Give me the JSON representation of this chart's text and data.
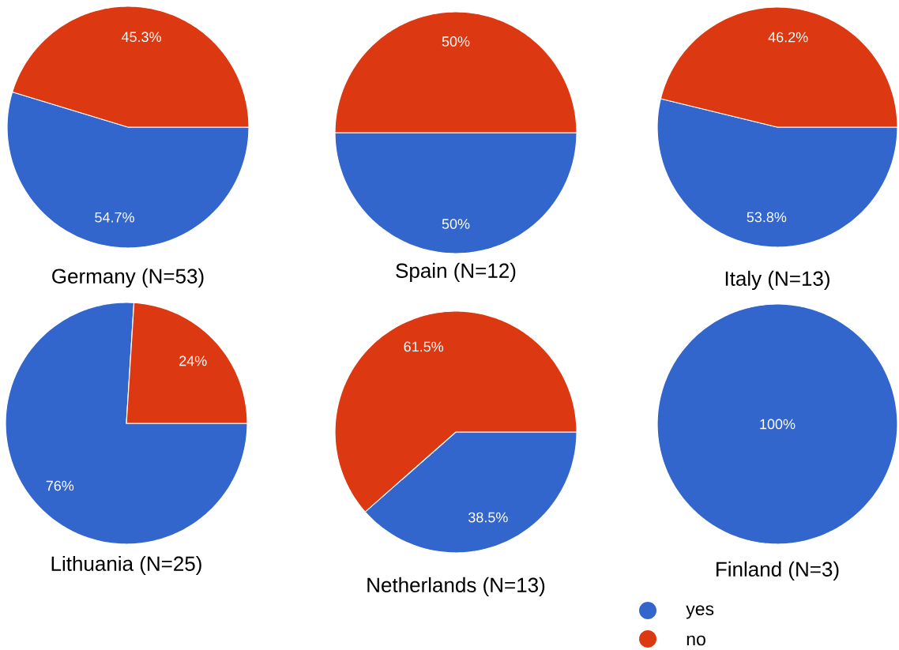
{
  "chart_data": [
    {
      "type": "pie",
      "title": "Germany (N=53)",
      "categories": [
        null,
        null
      ],
      "values": [
        54.7,
        45.3
      ],
      "colors": [
        "#3366cc",
        "#dc3912"
      ],
      "value_labels": [
        "54.7%",
        "45.3%"
      ]
    },
    {
      "type": "pie",
      "title": "Spain (N=12)",
      "categories": [
        null,
        null
      ],
      "values": [
        50,
        50
      ],
      "colors": [
        "#3366cc",
        "#dc3912"
      ],
      "value_labels": [
        "50%",
        "50%"
      ]
    },
    {
      "type": "pie",
      "title": "Italy (N=13)",
      "categories": [
        null,
        null
      ],
      "values": [
        53.8,
        46.2
      ],
      "colors": [
        "#3366cc",
        "#dc3912"
      ],
      "value_labels": [
        "53.8%",
        "46.2%"
      ]
    },
    {
      "type": "pie",
      "title": "Lithuania  (N=25)",
      "categories": [
        null,
        null
      ],
      "values": [
        76,
        24
      ],
      "colors": [
        "#3366cc",
        "#dc3912"
      ],
      "value_labels": [
        "76%",
        "24%"
      ]
    },
    {
      "type": "pie",
      "title": "Netherlands (N=13)",
      "categories": [
        null,
        null
      ],
      "values": [
        38.5,
        61.5
      ],
      "colors": [
        "#3366cc",
        "#dc3912"
      ],
      "value_labels": [
        "38.5%",
        "61.5%"
      ]
    },
    {
      "type": "pie",
      "title": "Finland (N=3)",
      "categories": [
        "yes",
        "no"
      ],
      "values": [
        100,
        0
      ],
      "colors": [
        "#3366cc",
        "#dc3912"
      ],
      "value_labels": [
        "100%",
        null
      ],
      "legend": "bottom"
    }
  ]
}
